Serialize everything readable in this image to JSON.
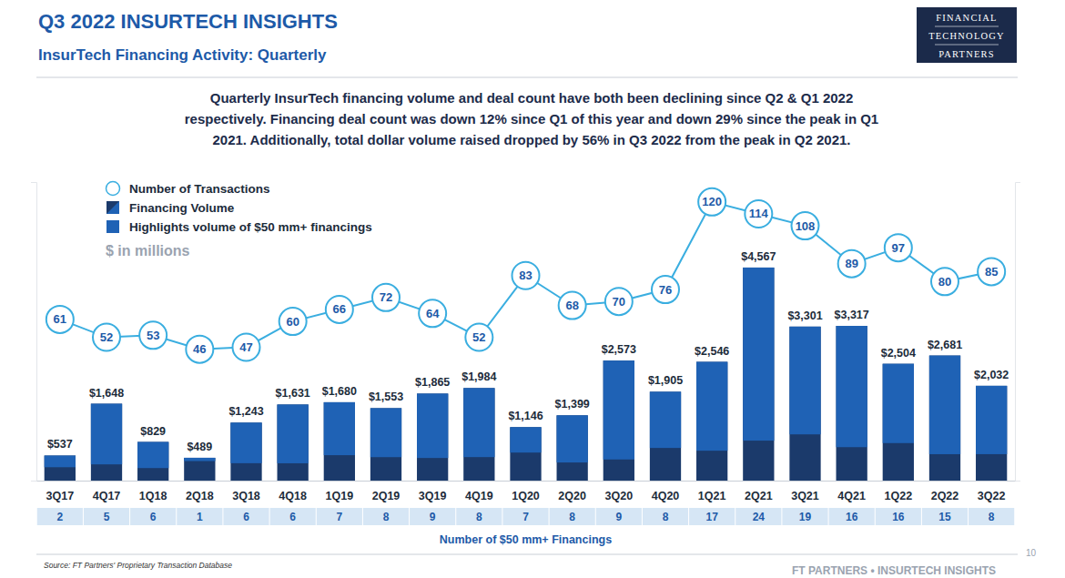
{
  "page": {
    "header": "Q3 2022 INSURTECH INSIGHTS",
    "subheader": "InsurTech Financing Activity: Quarterly",
    "logo": [
      "FINANCIAL",
      "TECHNOLOGY",
      "PARTNERS"
    ],
    "source": "Source: FT Partners' Proprietary Transaction Database",
    "footer": "FT PARTNERS • INSURTECH INSIGHTS",
    "page_number": "10"
  },
  "chart_data": {
    "type": "bar",
    "subtitle": [
      "Quarterly InsurTech financing volume and deal count have both been declining since Q2 & Q1 2022",
      "respectively. Financing deal count was down 12% since Q1 of this year and down 29% since the peak in Q1",
      "2021. Additionally, total dollar volume raised dropped by 56% in Q3 2022 from the peak in Q2 2021."
    ],
    "ylabel": "$ in millions",
    "categories": [
      "3Q17",
      "4Q17",
      "1Q18",
      "2Q18",
      "3Q18",
      "4Q18",
      "1Q19",
      "2Q19",
      "3Q19",
      "4Q19",
      "1Q20",
      "2Q20",
      "3Q20",
      "4Q20",
      "1Q21",
      "2Q21",
      "3Q21",
      "4Q21",
      "1Q22",
      "2Q22",
      "3Q22"
    ],
    "series": [
      {
        "name": "Number of Transactions",
        "type": "line",
        "axis": "y2",
        "color": "#3aaee0",
        "marker": "circle",
        "data_labels": true,
        "values": [
          61,
          52,
          53,
          46,
          47,
          60,
          66,
          72,
          64,
          52,
          83,
          68,
          70,
          76,
          120,
          114,
          108,
          89,
          97,
          80,
          85
        ]
      },
      {
        "name": "Financing Volume",
        "type": "bar",
        "color": "#1b3a6b",
        "data_labels": true,
        "values": [
          537,
          1648,
          829,
          489,
          1243,
          1631,
          1680,
          1553,
          1865,
          1984,
          1146,
          1399,
          2573,
          1905,
          2546,
          4567,
          3301,
          3317,
          2504,
          2681,
          2032
        ],
        "value_labels": [
          "$537",
          "$1,648",
          "$829",
          "$489",
          "$1,243",
          "$1,631",
          "$1,680",
          "$1,553",
          "$1,865",
          "$1,984",
          "$1,146",
          "$1,399",
          "$2,573",
          "$1,905",
          "$2,546",
          "$4,567",
          "$3,301",
          "$3,317",
          "$2,504",
          "$2,681",
          "$2,032"
        ]
      },
      {
        "name": "Highlights volume of $50 mm+ financings",
        "type": "bar",
        "color": "#1f62b5",
        "values": [
          250,
          1300,
          560,
          70,
          870,
          1260,
          1135,
          1050,
          1380,
          1480,
          545,
          1010,
          2120,
          1205,
          1905,
          3710,
          2310,
          2600,
          1700,
          2115,
          1465
        ]
      }
    ],
    "ylim": [
      0,
      6400
    ],
    "yticks": [],
    "y2lim": [
      -20,
      130
    ],
    "y2ticks": [],
    "tick_labels": "x",
    "legend": "top-left",
    "counts_50mm": {
      "label": "Number of $50 mm+ Financings",
      "values": [
        2,
        5,
        6,
        1,
        6,
        6,
        7,
        8,
        9,
        8,
        7,
        8,
        9,
        8,
        17,
        24,
        19,
        16,
        16,
        15,
        8
      ]
    }
  }
}
